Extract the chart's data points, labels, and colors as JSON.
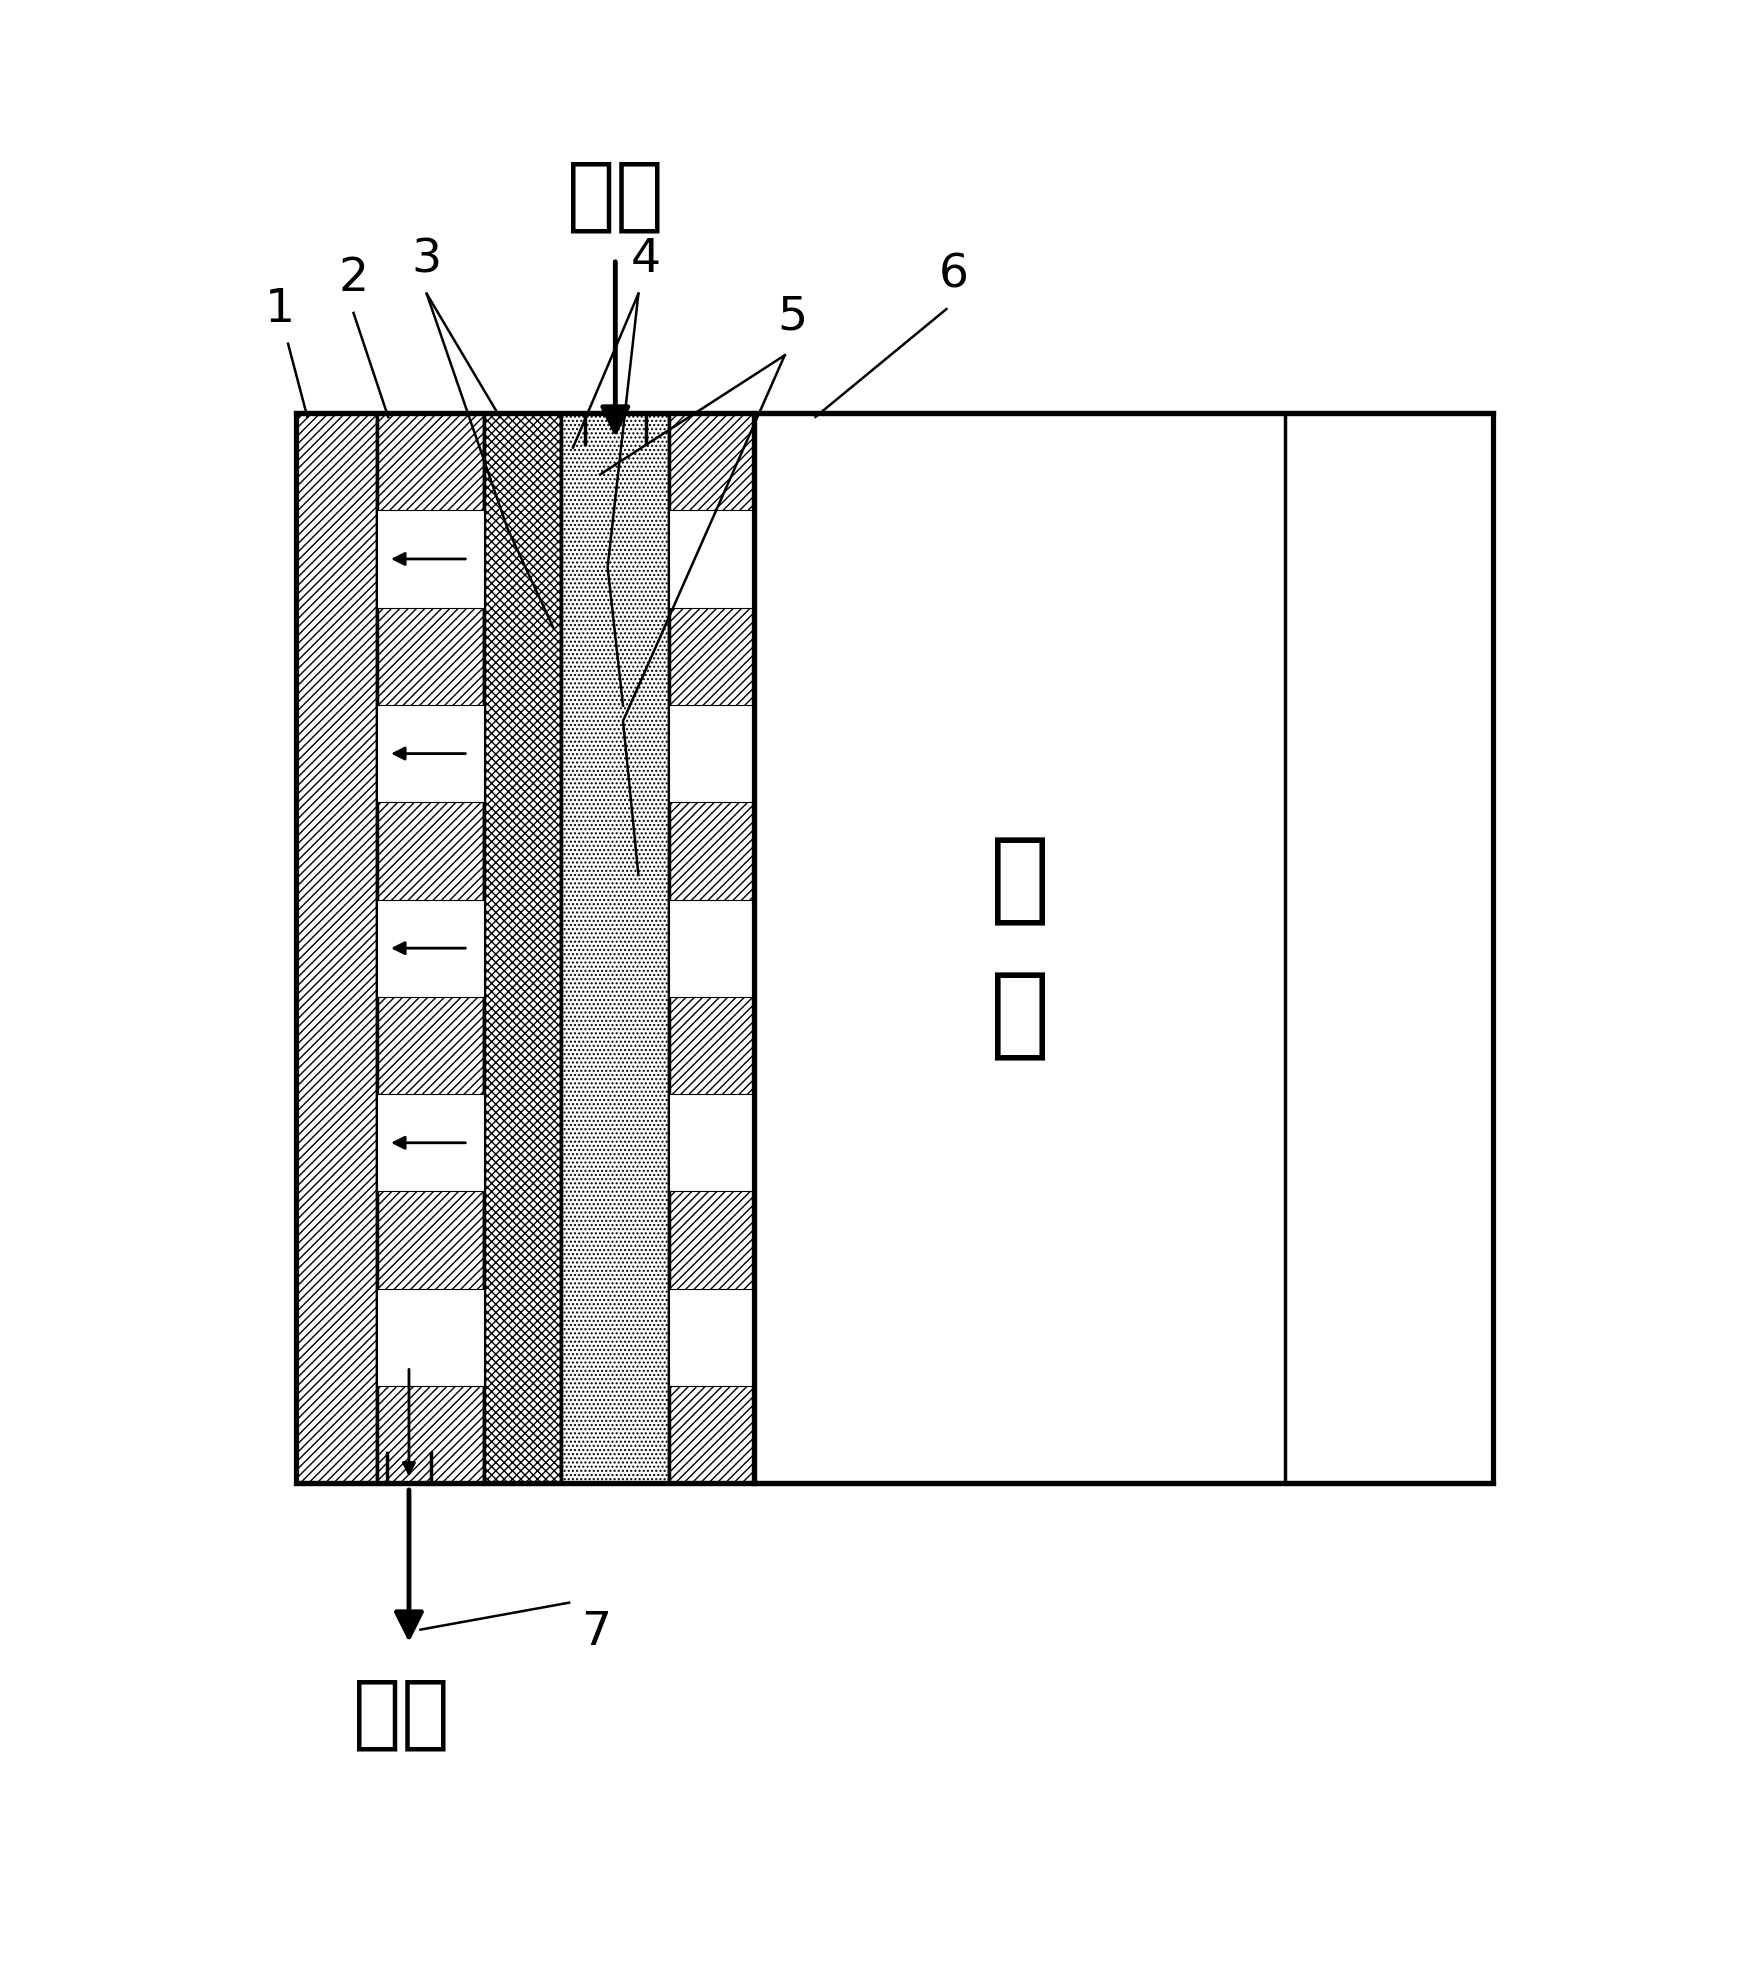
{
  "fig_width": 17.46,
  "fig_height": 19.66,
  "dpi": 100,
  "bg_color": "#ffffff",
  "cathode_label": "阴\n极",
  "fuel_label": "燃料",
  "waste_label": "废液",
  "lw": 2.5
}
